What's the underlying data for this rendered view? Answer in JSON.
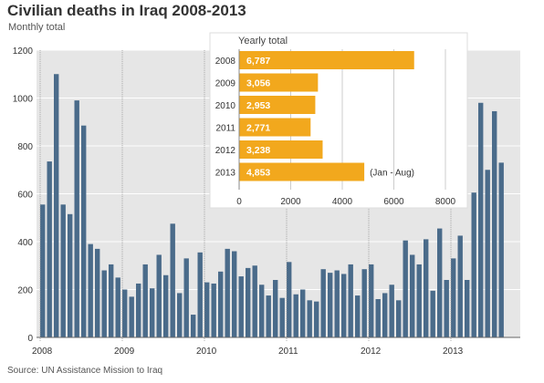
{
  "header": {
    "title": "Civilian deaths in Iraq 2008-2013",
    "subtitle": "Monthly total"
  },
  "footer": {
    "source": "Source: UN Assistance Mission to Iraq"
  },
  "colors": {
    "monthly_bar": "#4a6b8a",
    "yearly_bar": "#f2a81d",
    "plot_background": "#e6e6e6",
    "inset_background": "#ffffff",
    "grid_line": "#ffffff",
    "inset_grid_line": "#cccccc"
  },
  "chart_data": [
    {
      "type": "bar",
      "subtitle": "Monthly total",
      "ylim": [
        0,
        1200
      ],
      "yticks": [
        0,
        200,
        400,
        600,
        800,
        1000,
        1200
      ],
      "xticks": [
        "2008",
        "2009",
        "2010",
        "2011",
        "2012",
        "2013"
      ],
      "grid": true,
      "values": [
        555,
        735,
        1100,
        555,
        515,
        990,
        885,
        390,
        370,
        280,
        305,
        250,
        200,
        170,
        225,
        305,
        205,
        345,
        260,
        475,
        185,
        330,
        95,
        355,
        230,
        225,
        275,
        370,
        360,
        255,
        290,
        300,
        220,
        175,
        240,
        165,
        315,
        180,
        200,
        155,
        150,
        285,
        270,
        280,
        265,
        305,
        175,
        285,
        305,
        160,
        185,
        220,
        155,
        405,
        345,
        305,
        410,
        195,
        455,
        240,
        330,
        425,
        240,
        605,
        980,
        700,
        945,
        730
      ]
    },
    {
      "type": "bar",
      "title": "Yearly total",
      "categories": [
        "2008",
        "2009",
        "2010",
        "2011",
        "2012",
        "2013"
      ],
      "values": [
        6787,
        3056,
        2953,
        2771,
        3238,
        4853
      ],
      "value_labels": [
        "6,787",
        "3,056",
        "2,953",
        "2,771",
        "3,238",
        "4,853"
      ],
      "xlim": [
        0,
        8000
      ],
      "xticks": [
        "0",
        "2000",
        "4000",
        "6000",
        "8000"
      ],
      "annotation": "(Jan - Aug)"
    }
  ]
}
